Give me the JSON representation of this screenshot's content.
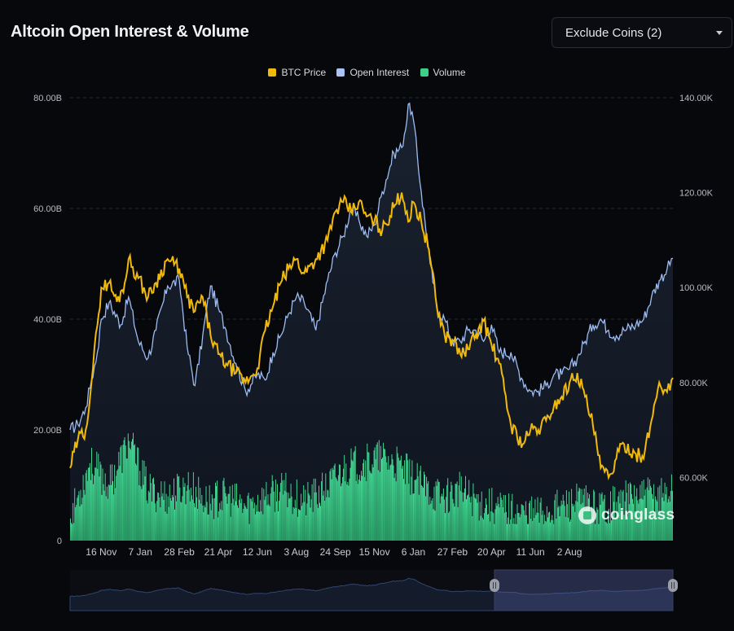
{
  "header": {
    "title": "Altcoin Open Interest & Volume",
    "filter_label": "Exclude Coins (2)"
  },
  "legend": [
    {
      "name": "BTC Price",
      "color": "#f0b90b"
    },
    {
      "name": "Open Interest",
      "color": "#9dbcf2"
    },
    {
      "name": "Volume",
      "color": "#3ccf86"
    }
  ],
  "watermark": "coinglass",
  "chart_data": {
    "type": "line",
    "title": "Altcoin Open Interest & Volume",
    "y_left": {
      "ticks": [
        "0",
        "20.00B",
        "40.00B",
        "60.00B",
        "80.00B"
      ],
      "range": [
        0,
        80
      ]
    },
    "y_right": {
      "ticks": [
        "60.00K",
        "80.00K",
        "100.00K",
        "120.00K",
        "140.00K"
      ],
      "range": [
        46.7,
        140
      ]
    },
    "x_ticks": [
      "16 Nov",
      "7 Jan",
      "28 Feb",
      "21 Apr",
      "12 Jun",
      "3 Aug",
      "24 Sep",
      "15 Nov",
      "6 Jan",
      "27 Feb",
      "20 Apr",
      "11 Jun",
      "2 Aug"
    ],
    "grid": true,
    "legend_position": "top-center",
    "series": [
      {
        "name": "Open Interest",
        "axis": "left",
        "unit": "B",
        "points": [
          [
            0,
            20
          ],
          [
            0.2,
            21
          ],
          [
            0.4,
            24
          ],
          [
            0.55,
            29
          ],
          [
            0.7,
            34
          ],
          [
            0.8,
            40
          ],
          [
            1.0,
            43
          ],
          [
            1.3,
            39
          ],
          [
            1.5,
            44
          ],
          [
            1.75,
            36
          ],
          [
            2.0,
            33
          ],
          [
            2.2,
            38
          ],
          [
            2.5,
            46
          ],
          [
            2.8,
            47
          ],
          [
            3.0,
            35
          ],
          [
            3.2,
            28
          ],
          [
            3.4,
            37
          ],
          [
            3.6,
            46
          ],
          [
            3.8,
            42
          ],
          [
            4.0,
            38
          ],
          [
            4.25,
            32
          ],
          [
            4.5,
            27
          ],
          [
            4.8,
            30
          ],
          [
            5.0,
            29
          ],
          [
            5.2,
            34
          ],
          [
            5.4,
            37
          ],
          [
            5.6,
            41
          ],
          [
            5.8,
            44
          ],
          [
            6.0,
            43
          ],
          [
            6.3,
            38
          ],
          [
            6.6,
            47
          ],
          [
            6.8,
            52
          ],
          [
            7.0,
            55
          ],
          [
            7.2,
            60
          ],
          [
            7.4,
            58
          ],
          [
            7.6,
            55
          ],
          [
            7.8,
            57
          ],
          [
            8.0,
            63
          ],
          [
            8.3,
            70
          ],
          [
            8.5,
            71
          ],
          [
            8.7,
            79
          ],
          [
            8.8,
            76
          ],
          [
            9.0,
            63
          ],
          [
            9.2,
            52
          ],
          [
            9.4,
            42
          ],
          [
            9.6,
            40
          ],
          [
            9.8,
            36
          ],
          [
            10.0,
            36
          ],
          [
            10.2,
            38
          ],
          [
            10.4,
            38
          ],
          [
            10.6,
            36
          ],
          [
            10.8,
            39
          ],
          [
            11.0,
            34
          ],
          [
            11.3,
            34
          ],
          [
            11.6,
            29
          ],
          [
            11.8,
            27
          ],
          [
            12.0,
            27
          ],
          [
            12.2,
            28
          ],
          [
            12.4,
            30
          ],
          [
            12.6,
            30
          ],
          [
            12.8,
            31
          ],
          [
            13.0,
            33
          ],
          [
            13.2,
            36
          ],
          [
            13.4,
            39
          ],
          [
            13.6,
            40
          ],
          [
            13.8,
            38
          ],
          [
            14.0,
            37
          ],
          [
            14.2,
            38
          ],
          [
            14.5,
            39
          ],
          [
            14.7,
            40
          ],
          [
            14.9,
            44
          ],
          [
            15.1,
            47
          ],
          [
            15.3,
            49
          ],
          [
            15.45,
            51
          ]
        ]
      },
      {
        "name": "BTC Price",
        "axis": "right",
        "unit": "K",
        "points": [
          [
            0,
            62
          ],
          [
            0.2,
            68
          ],
          [
            0.4,
            70
          ],
          [
            0.55,
            80
          ],
          [
            0.7,
            92
          ],
          [
            0.8,
            100
          ],
          [
            1.0,
            101
          ],
          [
            1.2,
            97
          ],
          [
            1.4,
            101
          ],
          [
            1.5,
            106
          ],
          [
            1.75,
            102
          ],
          [
            2.0,
            98
          ],
          [
            2.2,
            101
          ],
          [
            2.5,
            106
          ],
          [
            2.8,
            104
          ],
          [
            3.0,
            98
          ],
          [
            3.2,
            95
          ],
          [
            3.4,
            98
          ],
          [
            3.6,
            90
          ],
          [
            3.8,
            86
          ],
          [
            4.0,
            84
          ],
          [
            4.25,
            82
          ],
          [
            4.5,
            80
          ],
          [
            4.8,
            83
          ],
          [
            5.0,
            91
          ],
          [
            5.2,
            96
          ],
          [
            5.4,
            101
          ],
          [
            5.6,
            104
          ],
          [
            5.8,
            106
          ],
          [
            6.0,
            103
          ],
          [
            6.3,
            106
          ],
          [
            6.6,
            110
          ],
          [
            6.8,
            116
          ],
          [
            7.0,
            118
          ],
          [
            7.2,
            116
          ],
          [
            7.4,
            118
          ],
          [
            7.6,
            115
          ],
          [
            7.8,
            114
          ],
          [
            8.0,
            112
          ],
          [
            8.3,
            117
          ],
          [
            8.5,
            120
          ],
          [
            8.7,
            114
          ],
          [
            8.8,
            118
          ],
          [
            9.0,
            114
          ],
          [
            9.2,
            108
          ],
          [
            9.4,
            96
          ],
          [
            9.6,
            90
          ],
          [
            9.8,
            89
          ],
          [
            10.0,
            86
          ],
          [
            10.2,
            87
          ],
          [
            10.4,
            90
          ],
          [
            10.6,
            93
          ],
          [
            10.8,
            88
          ],
          [
            11.0,
            84
          ],
          [
            11.3,
            71
          ],
          [
            11.6,
            67
          ],
          [
            11.8,
            70
          ],
          [
            12.0,
            70
          ],
          [
            12.2,
            72
          ],
          [
            12.4,
            75
          ],
          [
            12.6,
            77
          ],
          [
            12.8,
            80
          ],
          [
            13.0,
            82
          ],
          [
            13.2,
            77
          ],
          [
            13.4,
            71
          ],
          [
            13.6,
            62
          ],
          [
            13.8,
            60
          ],
          [
            14.0,
            64
          ],
          [
            14.2,
            67
          ],
          [
            14.5,
            65
          ],
          [
            14.7,
            64
          ],
          [
            14.9,
            72
          ],
          [
            15.1,
            80
          ],
          [
            15.3,
            78
          ],
          [
            15.45,
            81
          ]
        ]
      },
      {
        "name": "Volume",
        "axis": "left",
        "unit": "B",
        "style": "bars",
        "points": [
          [
            0,
            4
          ],
          [
            0.5,
            14
          ],
          [
            1.0,
            10
          ],
          [
            1.5,
            18
          ],
          [
            2.0,
            9
          ],
          [
            2.5,
            8
          ],
          [
            3.0,
            10
          ],
          [
            3.5,
            7
          ],
          [
            4.0,
            8
          ],
          [
            4.5,
            6
          ],
          [
            5.0,
            8
          ],
          [
            5.5,
            9
          ],
          [
            6.0,
            7
          ],
          [
            6.5,
            9
          ],
          [
            7.0,
            13
          ],
          [
            7.5,
            14
          ],
          [
            8.0,
            15
          ],
          [
            8.5,
            13
          ],
          [
            9.0,
            10
          ],
          [
            9.5,
            8
          ],
          [
            10.0,
            9
          ],
          [
            10.5,
            7
          ],
          [
            11.0,
            6
          ],
          [
            11.5,
            5
          ],
          [
            12.0,
            5
          ],
          [
            12.5,
            6
          ],
          [
            13.0,
            7
          ],
          [
            13.5,
            6
          ],
          [
            14.0,
            7
          ],
          [
            14.5,
            8
          ],
          [
            15.0,
            8
          ],
          [
            15.45,
            9
          ]
        ]
      }
    ]
  }
}
